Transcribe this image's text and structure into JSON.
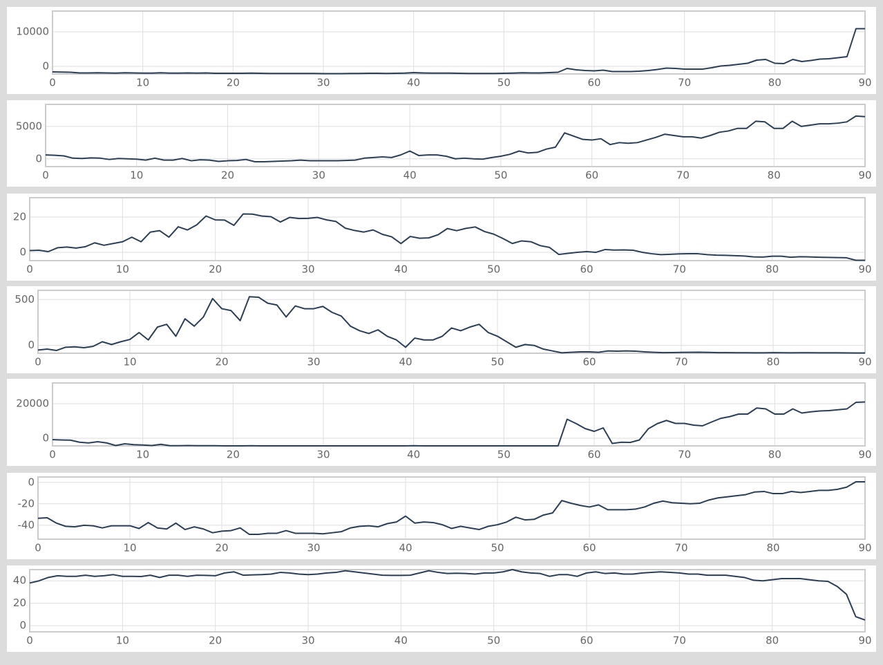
{
  "chart_data": [
    {
      "type": "line",
      "x": [
        0,
        1,
        2,
        3,
        4,
        5,
        6,
        7,
        8,
        9,
        10,
        11,
        12,
        13,
        14,
        15,
        16,
        17,
        18,
        19,
        20,
        21,
        22,
        23,
        24,
        25,
        26,
        27,
        28,
        29,
        30,
        31,
        32,
        33,
        34,
        35,
        36,
        37,
        38,
        39,
        40,
        41,
        42,
        43,
        44,
        45,
        46,
        47,
        48,
        49,
        50,
        51,
        52,
        53,
        54,
        55,
        56,
        57,
        58,
        59,
        60,
        61,
        62,
        63,
        64,
        65,
        66,
        67,
        68,
        69,
        70,
        71,
        72,
        73,
        74,
        75,
        76,
        77,
        78,
        79,
        80,
        81,
        82,
        83,
        84,
        85,
        86,
        87,
        88,
        89,
        90
      ],
      "color": "#2c3e55",
      "xlim": [
        0,
        90
      ],
      "xticks": [
        0,
        10,
        20,
        30,
        40,
        50,
        60,
        70,
        80,
        90
      ],
      "ylim": [
        -2200,
        16000
      ],
      "yticks": [
        0,
        10000
      ],
      "grid": true,
      "values": [
        -1600,
        -1650,
        -1700,
        -1900,
        -1900,
        -1850,
        -1900,
        -1950,
        -1850,
        -1900,
        -1950,
        -1950,
        -1850,
        -1950,
        -1950,
        -1900,
        -1950,
        -1900,
        -2000,
        -2000,
        -2000,
        -2000,
        -1950,
        -2000,
        -2050,
        -2050,
        -2050,
        -2050,
        -2050,
        -2050,
        -2100,
        -2100,
        -2100,
        -2050,
        -2050,
        -2000,
        -2000,
        -2050,
        -2000,
        -1950,
        -1800,
        -1900,
        -1950,
        -1950,
        -1950,
        -2000,
        -2050,
        -2050,
        -2050,
        -2050,
        -2000,
        -1950,
        -1850,
        -1900,
        -1900,
        -1800,
        -1700,
        -600,
        -1000,
        -1200,
        -1300,
        -1100,
        -1500,
        -1500,
        -1500,
        -1400,
        -1200,
        -900,
        -500,
        -600,
        -800,
        -800,
        -800,
        -400,
        100,
        300,
        600,
        900,
        1800,
        2000,
        900,
        800,
        2000,
        1400,
        1700,
        2100,
        2200,
        2500,
        2800,
        10900,
        10900
      ]
    },
    {
      "type": "line",
      "x": [
        0,
        1,
        2,
        3,
        4,
        5,
        6,
        7,
        8,
        9,
        10,
        11,
        12,
        13,
        14,
        15,
        16,
        17,
        18,
        19,
        20,
        21,
        22,
        23,
        24,
        25,
        26,
        27,
        28,
        29,
        30,
        31,
        32,
        33,
        34,
        35,
        36,
        37,
        38,
        39,
        40,
        41,
        42,
        43,
        44,
        45,
        46,
        47,
        48,
        49,
        50,
        51,
        52,
        53,
        54,
        55,
        56,
        57,
        58,
        59,
        60,
        61,
        62,
        63,
        64,
        65,
        66,
        67,
        68,
        69,
        70,
        71,
        72,
        73,
        74,
        75,
        76,
        77,
        78,
        79,
        80,
        81,
        82,
        83,
        84,
        85,
        86,
        87,
        88,
        89,
        90
      ],
      "color": "#2c3e55",
      "xlim": [
        0,
        90
      ],
      "xticks": [
        0,
        10,
        20,
        30,
        40,
        50,
        60,
        70,
        80,
        90
      ],
      "ylim": [
        -1200,
        8400
      ],
      "yticks": [
        0,
        5000
      ],
      "grid": true,
      "values": [
        600,
        550,
        450,
        100,
        50,
        150,
        100,
        -100,
        50,
        0,
        -50,
        -200,
        100,
        -200,
        -200,
        50,
        -300,
        -150,
        -200,
        -400,
        -300,
        -250,
        -100,
        -450,
        -450,
        -400,
        -350,
        -300,
        -200,
        -300,
        -300,
        -300,
        -300,
        -250,
        -200,
        100,
        200,
        300,
        200,
        600,
        1200,
        500,
        600,
        600,
        400,
        0,
        100,
        0,
        -50,
        200,
        400,
        700,
        1200,
        900,
        1000,
        1500,
        1800,
        4000,
        3500,
        3000,
        2900,
        3100,
        2200,
        2500,
        2400,
        2500,
        2900,
        3300,
        3800,
        3600,
        3400,
        3400,
        3200,
        3600,
        4100,
        4300,
        4700,
        4700,
        5800,
        5700,
        4700,
        4700,
        5800,
        5000,
        5200,
        5400,
        5400,
        5500,
        5700,
        6600,
        6500
      ]
    },
    {
      "type": "line",
      "x": [
        0,
        1,
        2,
        3,
        4,
        5,
        6,
        7,
        8,
        9,
        10,
        11,
        12,
        13,
        14,
        15,
        16,
        17,
        18,
        19,
        20,
        21,
        22,
        23,
        24,
        25,
        26,
        27,
        28,
        29,
        30,
        31,
        32,
        33,
        34,
        35,
        36,
        37,
        38,
        39,
        40,
        41,
        42,
        43,
        44,
        45,
        46,
        47,
        48,
        49,
        50,
        51,
        52,
        53,
        54,
        55,
        56,
        57,
        58,
        59,
        60,
        61,
        62,
        63,
        64,
        65,
        66,
        67,
        68,
        69,
        70,
        71,
        72,
        73,
        74,
        75,
        76,
        77,
        78,
        79,
        80,
        81,
        82,
        83,
        84,
        85,
        86,
        87,
        88,
        89,
        90
      ],
      "color": "#2c3e55",
      "xlim": [
        0,
        90
      ],
      "xticks": [
        0,
        10,
        20,
        30,
        40,
        50,
        60,
        70,
        80,
        90
      ],
      "ylim": [
        -4.7,
        31
      ],
      "yticks": [
        0,
        20
      ],
      "grid": true,
      "values": [
        1,
        1.2,
        0.4,
        2.6,
        3,
        2.4,
        3.2,
        5.4,
        4,
        5,
        6,
        8.6,
        6,
        11.5,
        12.3,
        8.6,
        14.5,
        12.7,
        15.6,
        20.6,
        18.4,
        18.3,
        15.3,
        21.8,
        21.7,
        20.6,
        20.2,
        17.2,
        19.8,
        19.2,
        19.3,
        19.8,
        18.4,
        17.5,
        13.7,
        12.4,
        11.5,
        12.7,
        10.2,
        8.8,
        5,
        9,
        8,
        8.2,
        10,
        13.5,
        12.3,
        13.6,
        14.4,
        11.8,
        10.3,
        7.8,
        5,
        6.5,
        6,
        3.8,
        2.8,
        -1.2,
        -0.6,
        0,
        0.4,
        0,
        1.6,
        1.3,
        1.4,
        1.2,
        0,
        -0.8,
        -1.3,
        -1.1,
        -0.9,
        -0.8,
        -0.8,
        -1.3,
        -1.6,
        -1.7,
        -1.9,
        -2.1,
        -2.6,
        -2.7,
        -2.2,
        -2.2,
        -2.8,
        -2.5,
        -2.6,
        -2.8,
        -2.9,
        -3,
        -3.1,
        -4.5,
        -4.5
      ]
    },
    {
      "type": "line",
      "x": [
        0,
        1,
        2,
        3,
        4,
        5,
        6,
        7,
        8,
        9,
        10,
        11,
        12,
        13,
        14,
        15,
        16,
        17,
        18,
        19,
        20,
        21,
        22,
        23,
        24,
        25,
        26,
        27,
        28,
        29,
        30,
        31,
        32,
        33,
        34,
        35,
        36,
        37,
        38,
        39,
        40,
        41,
        42,
        43,
        44,
        45,
        46,
        47,
        48,
        49,
        50,
        51,
        52,
        53,
        54,
        55,
        56,
        57,
        58,
        59,
        60,
        61,
        62,
        63,
        64,
        65,
        66,
        67,
        68,
        69,
        70,
        71,
        72,
        73,
        74,
        75,
        76,
        77,
        78,
        79,
        80,
        81,
        82,
        83,
        84,
        85,
        86,
        87,
        88,
        89,
        90
      ],
      "color": "#2c3e55",
      "xlim": [
        0,
        90
      ],
      "xticks": [
        0,
        10,
        20,
        30,
        40,
        50,
        60,
        70,
        80,
        90
      ],
      "ylim": [
        -85,
        600
      ],
      "yticks": [
        0,
        500
      ],
      "grid": true,
      "values": [
        -50,
        -40,
        -55,
        -20,
        -15,
        -25,
        -10,
        40,
        10,
        40,
        65,
        140,
        60,
        200,
        230,
        100,
        290,
        210,
        310,
        510,
        400,
        380,
        270,
        530,
        525,
        460,
        440,
        310,
        430,
        400,
        400,
        425,
        360,
        320,
        210,
        160,
        130,
        170,
        100,
        60,
        -20,
        80,
        60,
        60,
        100,
        190,
        160,
        200,
        230,
        140,
        100,
        40,
        -20,
        10,
        0,
        -40,
        -60,
        -80,
        -75,
        -70,
        -70,
        -75,
        -60,
        -62,
        -60,
        -62,
        -70,
        -75,
        -78,
        -77,
        -76,
        -75,
        -74,
        -76,
        -78,
        -78,
        -79,
        -79,
        -80,
        -80,
        -78,
        -79,
        -80,
        -79,
        -79,
        -80,
        -80,
        -80,
        -81,
        -82,
        -82
      ]
    },
    {
      "type": "line",
      "x": [
        0,
        1,
        2,
        3,
        4,
        5,
        6,
        7,
        8,
        9,
        10,
        11,
        12,
        13,
        14,
        15,
        16,
        17,
        18,
        19,
        20,
        21,
        22,
        23,
        24,
        25,
        26,
        27,
        28,
        29,
        30,
        31,
        32,
        33,
        34,
        35,
        36,
        37,
        38,
        39,
        40,
        41,
        42,
        43,
        44,
        45,
        46,
        47,
        48,
        49,
        50,
        51,
        52,
        53,
        54,
        55,
        56,
        57,
        58,
        59,
        60,
        61,
        62,
        63,
        64,
        65,
        66,
        67,
        68,
        69,
        70,
        71,
        72,
        73,
        74,
        75,
        76,
        77,
        78,
        79,
        80,
        81,
        82,
        83,
        84,
        85,
        86,
        87,
        88,
        89,
        90
      ],
      "color": "#2c3e55",
      "xlim": [
        0,
        90
      ],
      "xticks": [
        0,
        10,
        20,
        30,
        40,
        50,
        60,
        70,
        80,
        90
      ],
      "ylim": [
        -4400,
        32000
      ],
      "yticks": [
        0,
        20000
      ],
      "grid": true,
      "values": [
        -800,
        -1000,
        -1100,
        -2300,
        -2700,
        -2000,
        -2700,
        -4200,
        -3200,
        -3700,
        -3900,
        -4200,
        -3500,
        -4300,
        -4300,
        -4200,
        -4300,
        -4300,
        -4300,
        -4400,
        -4400,
        -4400,
        -4300,
        -4400,
        -4400,
        -4400,
        -4400,
        -4400,
        -4400,
        -4400,
        -4400,
        -4400,
        -4400,
        -4400,
        -4400,
        -4400,
        -4400,
        -4400,
        -4400,
        -4400,
        -4300,
        -4400,
        -4400,
        -4400,
        -4400,
        -4400,
        -4400,
        -4400,
        -4400,
        -4400,
        -4400,
        -4400,
        -4400,
        -4400,
        -4400,
        -4400,
        -4400,
        11000,
        8500,
        5600,
        4000,
        6000,
        -3000,
        -2300,
        -2400,
        -1000,
        5500,
        8500,
        10300,
        8600,
        8600,
        7600,
        7200,
        9400,
        11500,
        12500,
        14000,
        14000,
        17500,
        17000,
        14000,
        14000,
        17000,
        14600,
        15300,
        15800,
        16000,
        16500,
        17000,
        20800,
        21000
      ]
    },
    {
      "type": "line",
      "x": [
        0,
        1,
        2,
        3,
        4,
        5,
        6,
        7,
        8,
        9,
        10,
        11,
        12,
        13,
        14,
        15,
        16,
        17,
        18,
        19,
        20,
        21,
        22,
        23,
        24,
        25,
        26,
        27,
        28,
        29,
        30,
        31,
        32,
        33,
        34,
        35,
        36,
        37,
        38,
        39,
        40,
        41,
        42,
        43,
        44,
        45,
        46,
        47,
        48,
        49,
        50,
        51,
        52,
        53,
        54,
        55,
        56,
        57,
        58,
        59,
        60,
        61,
        62,
        63,
        64,
        65,
        66,
        67,
        68,
        69,
        70,
        71,
        72,
        73,
        74,
        75,
        76,
        77,
        78,
        79,
        80,
        81,
        82,
        83,
        84,
        85,
        86,
        87,
        88,
        89,
        90
      ],
      "color": "#2c3e55",
      "xlim": [
        0,
        90
      ],
      "xticks": [
        0,
        10,
        20,
        30,
        40,
        50,
        60,
        70,
        80,
        90
      ],
      "ylim": [
        -53,
        5
      ],
      "yticks": [
        0,
        -20,
        -40
      ],
      "grid": true,
      "values": [
        -33.5,
        -33,
        -38,
        -41,
        -41.5,
        -40,
        -40.5,
        -42.5,
        -40.5,
        -40.5,
        -40.5,
        -43,
        -37.5,
        -42.5,
        -43.5,
        -38,
        -44,
        -41.5,
        -43.5,
        -47,
        -45.5,
        -45,
        -42.5,
        -48.5,
        -48.5,
        -47.5,
        -47.5,
        -45,
        -47.5,
        -47.5,
        -47.5,
        -48,
        -47,
        -46,
        -42.5,
        -41,
        -40.5,
        -41.5,
        -38.5,
        -37,
        -31.5,
        -38,
        -37,
        -37.5,
        -39.5,
        -43,
        -41,
        -42.5,
        -44,
        -41,
        -39.5,
        -37,
        -32.5,
        -35,
        -34.5,
        -30.5,
        -28.5,
        -17,
        -19.5,
        -21.5,
        -23,
        -21,
        -25.5,
        -25.5,
        -25.5,
        -25,
        -23,
        -19.5,
        -17.5,
        -19,
        -19.5,
        -20,
        -19.5,
        -16.5,
        -14.5,
        -13.5,
        -12.5,
        -11.5,
        -9,
        -8.5,
        -10.5,
        -10.5,
        -8.5,
        -9.5,
        -8.5,
        -7.5,
        -7.5,
        -6.5,
        -4.5,
        0.5,
        0.5
      ]
    },
    {
      "type": "line",
      "x": [
        0,
        1,
        2,
        3,
        4,
        5,
        6,
        7,
        8,
        9,
        10,
        11,
        12,
        13,
        14,
        15,
        16,
        17,
        18,
        19,
        20,
        21,
        22,
        23,
        24,
        25,
        26,
        27,
        28,
        29,
        30,
        31,
        32,
        33,
        34,
        35,
        36,
        37,
        38,
        39,
        40,
        41,
        42,
        43,
        44,
        45,
        46,
        47,
        48,
        49,
        50,
        51,
        52,
        53,
        54,
        55,
        56,
        57,
        58,
        59,
        60,
        61,
        62,
        63,
        64,
        65,
        66,
        67,
        68,
        69,
        70,
        71,
        72,
        73,
        74,
        75,
        76,
        77,
        78,
        79,
        80,
        81,
        82,
        83,
        84,
        85,
        86,
        87,
        88,
        89,
        90
      ],
      "color": "#2c3e55",
      "xlim": [
        0,
        90
      ],
      "xticks": [
        0,
        10,
        20,
        30,
        40,
        50,
        60,
        70,
        80,
        90
      ],
      "ylim": [
        -5.5,
        50
      ],
      "yticks": [
        0,
        20,
        40
      ],
      "grid": true,
      "values": [
        38,
        40,
        43,
        44.5,
        44,
        44,
        45,
        44,
        44.5,
        45.5,
        44,
        44,
        43.8,
        45,
        43,
        45,
        45,
        44,
        45,
        44.8,
        44.5,
        47,
        48,
        45,
        45.3,
        45.5,
        46,
        47.5,
        47,
        46,
        45.5,
        46,
        47,
        47.5,
        49,
        48,
        47,
        46,
        45,
        44.8,
        44.8,
        45,
        47,
        49,
        47.5,
        46.5,
        46.8,
        46.5,
        46,
        47,
        47,
        48,
        50,
        48,
        47,
        46.5,
        44,
        45.5,
        45.5,
        44,
        47,
        48,
        46.5,
        47,
        46,
        46,
        47,
        47.5,
        48,
        47.5,
        47,
        46,
        46,
        45,
        45,
        45,
        44,
        43,
        40.5,
        40,
        41,
        42,
        42,
        42,
        41,
        40,
        39.5,
        35,
        28,
        8,
        5
      ]
    }
  ]
}
